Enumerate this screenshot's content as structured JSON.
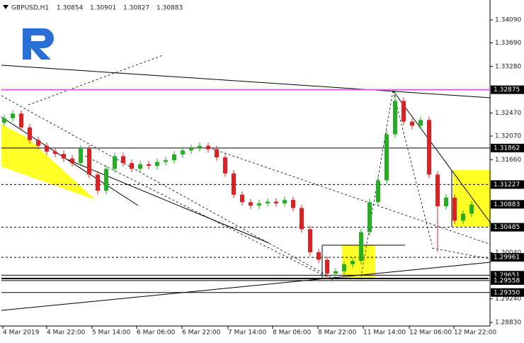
{
  "chart_data": {
    "type": "candlestick",
    "symbol": "GBPUSD,H1",
    "header_values": [
      "1.30854",
      "1.30901",
      "1.30827",
      "1.30883"
    ],
    "x_labels": [
      "4 Mar 2019",
      "4 Mar 22:00",
      "5 Mar 14:00",
      "6 Mar 06:00",
      "6 Mar 22:00",
      "7 Mar 14:00",
      "8 Mar 06:00",
      "8 Mar 22:00",
      "11 Mar 14:00",
      "12 Mar 06:00",
      "12 Mar 22:00"
    ],
    "open": [
      1.323,
      1.3238,
      1.3246,
      1.3222,
      1.32,
      1.319,
      1.318,
      1.3176,
      1.3168,
      1.316,
      1.3185,
      1.314,
      1.3112,
      1.315,
      1.3172,
      1.316,
      1.315,
      1.3158,
      1.3155,
      1.3162,
      1.3165,
      1.3175,
      1.3182,
      1.3186,
      1.319,
      1.3184,
      1.317,
      1.3142,
      1.3105,
      1.3092,
      1.3086,
      1.309,
      1.3093,
      1.309,
      1.3096,
      1.3082,
      1.3045,
      1.3005,
      1.2992,
      1.2968,
      1.2972,
      1.2984,
      1.299,
      1.304,
      1.3092,
      1.313,
      1.321,
      1.3268,
      1.3232,
      1.3225,
      1.3235,
      1.314,
      1.3085,
      1.31,
      1.306,
      1.3072
    ],
    "high": [
      1.3244,
      1.3252,
      1.3252,
      1.3228,
      1.3206,
      1.3196,
      1.3186,
      1.3182,
      1.3174,
      1.3191,
      1.3191,
      1.3146,
      1.3156,
      1.3178,
      1.3178,
      1.3166,
      1.3164,
      1.3164,
      1.3168,
      1.3171,
      1.3181,
      1.3188,
      1.3192,
      1.3196,
      1.3196,
      1.319,
      1.3176,
      1.3148,
      1.3111,
      1.3098,
      1.3096,
      1.3099,
      1.3099,
      1.3102,
      1.3102,
      1.3088,
      1.3051,
      1.3011,
      1.2998,
      1.2978,
      1.299,
      1.2996,
      1.3046,
      1.3098,
      1.3136,
      1.3216,
      1.3287,
      1.3274,
      1.3238,
      1.3241,
      1.3241,
      1.3146,
      1.3106,
      1.3106,
      1.3078,
      1.3094
    ],
    "low": [
      1.3224,
      1.3232,
      1.3216,
      1.3194,
      1.3184,
      1.3174,
      1.317,
      1.3162,
      1.3154,
      1.3154,
      1.3134,
      1.3106,
      1.3106,
      1.3144,
      1.3154,
      1.3144,
      1.3144,
      1.3149,
      1.3149,
      1.3156,
      1.3159,
      1.3169,
      1.3176,
      1.318,
      1.3178,
      1.3164,
      1.3136,
      1.3099,
      1.3086,
      1.308,
      1.308,
      1.3084,
      1.3084,
      1.3084,
      1.3076,
      1.3039,
      1.2999,
      1.2986,
      1.2958,
      1.2962,
      1.2966,
      1.2978,
      1.2984,
      1.3034,
      1.3086,
      1.3124,
      1.3204,
      1.3226,
      1.3219,
      1.3219,
      1.3134,
      1.3006,
      1.3079,
      1.3054,
      1.3054,
      1.3066
    ],
    "close": [
      1.3238,
      1.3246,
      1.3222,
      1.32,
      1.319,
      1.318,
      1.3176,
      1.3168,
      1.316,
      1.3185,
      1.314,
      1.3112,
      1.315,
      1.3172,
      1.316,
      1.315,
      1.3158,
      1.3155,
      1.3162,
      1.3165,
      1.3175,
      1.3182,
      1.3186,
      1.319,
      1.3184,
      1.317,
      1.3142,
      1.3105,
      1.3092,
      1.3086,
      1.309,
      1.3093,
      1.309,
      1.3096,
      1.3082,
      1.3045,
      1.3005,
      1.2992,
      1.2968,
      1.2972,
      1.2984,
      1.299,
      1.304,
      1.3092,
      1.313,
      1.321,
      1.3268,
      1.3232,
      1.3225,
      1.3235,
      1.314,
      1.3085,
      1.31,
      1.306,
      1.3072,
      1.3088
    ],
    "up_color": "#22b022",
    "down_color": "#e02020",
    "ylim": [
      1.28768,
      1.34435
    ],
    "yticks": [
      {
        "value": 1.3409,
        "label": "1.34090"
      },
      {
        "value": 1.3369,
        "label": "1.33690"
      },
      {
        "value": 1.3328,
        "label": "1.33280"
      },
      {
        "value": 1.3247,
        "label": "1.32470"
      },
      {
        "value": 1.3207,
        "label": "1.32070"
      },
      {
        "value": 1.3166,
        "label": "1.31660"
      },
      {
        "value": 1.3004,
        "label": "1.30040"
      },
      {
        "value": 1.2924,
        "label": "1.29240"
      },
      {
        "value": 1.2883,
        "label": "1.28830"
      }
    ],
    "levels": [
      {
        "value": 1.32875,
        "line": "solid",
        "color": "#e060e0"
      },
      {
        "value": 1.31862,
        "line": "solid",
        "color": "#000000"
      },
      {
        "value": 1.31227,
        "line": "dashed",
        "color": "#000000"
      },
      {
        "value": 1.30883,
        "line": "none",
        "color": "#000000"
      },
      {
        "value": 1.30485,
        "line": "dashed",
        "color": "#000000"
      },
      {
        "value": 1.29961,
        "line": "dashed",
        "color": "#000000"
      },
      {
        "value": 1.29651,
        "line": "solid",
        "color": "#000000"
      },
      {
        "value": 1.29558,
        "line": "solid",
        "color": "#000000"
      },
      {
        "value": 1.2935,
        "label": "1.29350",
        "line": "solid",
        "color": "#000000"
      }
    ]
  }
}
